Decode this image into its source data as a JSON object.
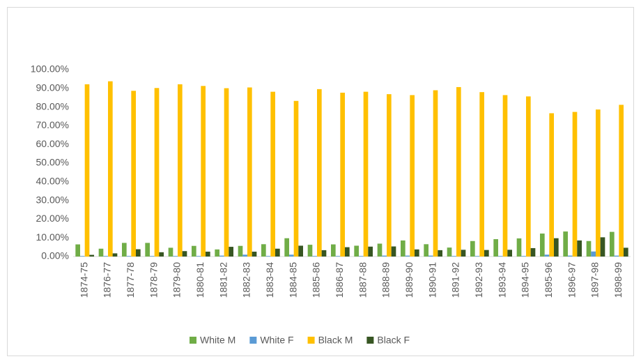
{
  "chart_data": {
    "type": "bar",
    "categories": [
      "1874-75",
      "1876-77",
      "1877-78",
      "1878-79",
      "1879-80",
      "1880-81",
      "1881-82",
      "1882-83",
      "1883-84",
      "1884-85",
      "1885-86",
      "1886-87",
      "1887-88",
      "1888-89",
      "1889-90",
      "1890-91",
      "1891-92",
      "1892-93",
      "1893-94",
      "1894-95",
      "1895-96",
      "1896-97",
      "1897-98",
      "1898-99"
    ],
    "series": [
      {
        "name": "White M",
        "color": "#70ad47",
        "values": [
          6.5,
          4.2,
          7.3,
          7.3,
          4.7,
          5.7,
          3.8,
          5.7,
          6.6,
          9.8,
          6.3,
          6.5,
          5.8,
          6.9,
          8.6,
          6.6,
          4.8,
          8.3,
          9.3,
          9.7,
          12.3,
          13.4,
          8.3,
          13.2
        ]
      },
      {
        "name": "White F",
        "color": "#5b9bd5",
        "values": [
          0.3,
          0.3,
          0.3,
          0.3,
          0.3,
          0.3,
          0.5,
          1.0,
          0.3,
          1.0,
          0.3,
          0.3,
          0.3,
          0.5,
          0.5,
          0.5,
          0.3,
          0.3,
          0.3,
          0.3,
          1.0,
          0.5,
          2.7,
          0.5
        ]
      },
      {
        "name": "Black M",
        "color": "#ffc000",
        "values": [
          92.2,
          93.8,
          88.7,
          90.2,
          92.2,
          91.3,
          90.1,
          90.5,
          88.2,
          83.3,
          89.6,
          87.7,
          88.2,
          86.9,
          86.4,
          89.0,
          90.7,
          88.0,
          86.4,
          85.7,
          76.7,
          77.4,
          78.7,
          81.2
        ]
      },
      {
        "name": "Black F",
        "color": "#375623",
        "values": [
          0.9,
          1.7,
          3.9,
          2.3,
          2.9,
          2.6,
          5.2,
          2.6,
          4.2,
          5.8,
          3.4,
          5.0,
          5.3,
          5.4,
          3.8,
          3.4,
          3.6,
          3.5,
          3.6,
          4.5,
          9.8,
          8.6,
          10.3,
          4.7
        ]
      }
    ],
    "ylim": [
      0,
      100
    ],
    "yticks": [
      {
        "value": 0,
        "label": "0.00%"
      },
      {
        "value": 10,
        "label": "10.00%"
      },
      {
        "value": 20,
        "label": "20.00%"
      },
      {
        "value": 30,
        "label": "30.00%"
      },
      {
        "value": 40,
        "label": "40.00%"
      },
      {
        "value": 50,
        "label": "50.00%"
      },
      {
        "value": 60,
        "label": "60.00%"
      },
      {
        "value": 70,
        "label": "70.00%"
      },
      {
        "value": 80,
        "label": "80.00%"
      },
      {
        "value": 90,
        "label": "90.00%"
      },
      {
        "value": 100,
        "label": "100.00%"
      }
    ],
    "legend": "bottom"
  }
}
